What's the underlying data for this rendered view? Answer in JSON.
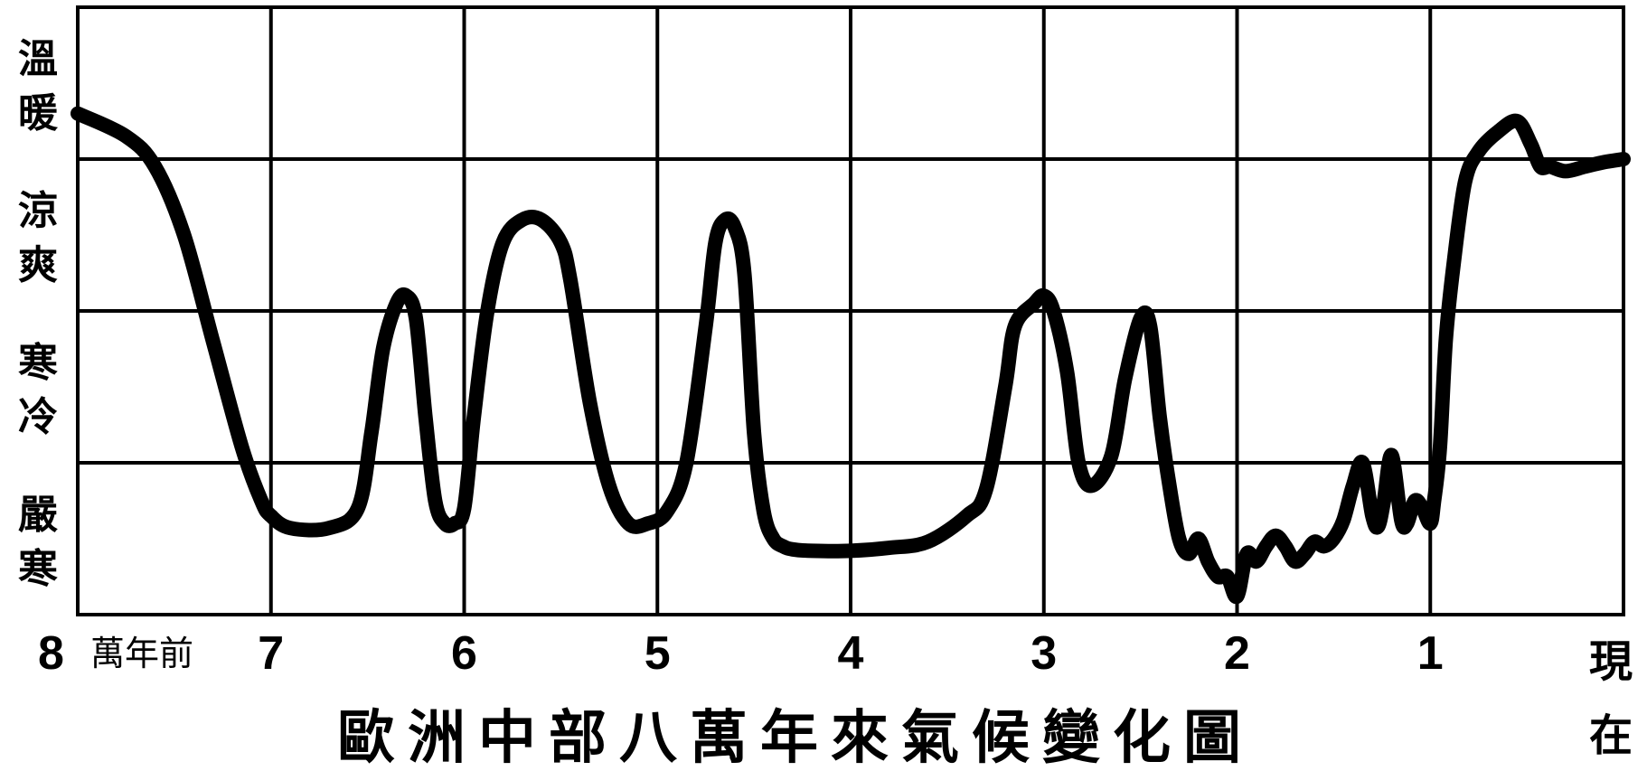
{
  "chart_data": {
    "type": "line",
    "title": "歐洲中部八萬年來氣候變化圖",
    "x_unit_label": "萬年前",
    "x_ticks": [
      "8",
      "7",
      "6",
      "5",
      "4",
      "3",
      "2",
      "1"
    ],
    "x_end_label": [
      "現",
      "在"
    ],
    "xlim": [
      8,
      0
    ],
    "ylim": [
      0,
      4
    ],
    "y_bands": [
      {
        "label": [
          "溫",
          "暖"
        ],
        "from": 3,
        "to": 4
      },
      {
        "label": [
          "涼",
          "爽"
        ],
        "from": 2,
        "to": 3
      },
      {
        "label": [
          "寒",
          "冷"
        ],
        "from": 1,
        "to": 2
      },
      {
        "label": [
          "嚴",
          "寒"
        ],
        "from": 0,
        "to": 1
      }
    ],
    "grid": true,
    "series": [
      {
        "color": "#000000",
        "x": [
          8.0,
          7.75,
          7.6,
          7.45,
          7.3,
          7.15,
          7.05,
          7.0,
          6.9,
          6.7,
          6.55,
          6.48,
          6.42,
          6.35,
          6.3,
          6.25,
          6.2,
          6.15,
          6.1,
          6.05,
          6.0,
          5.95,
          5.88,
          5.8,
          5.7,
          5.6,
          5.5,
          5.45,
          5.35,
          5.25,
          5.15,
          5.05,
          4.95,
          4.85,
          4.75,
          4.7,
          4.65,
          4.6,
          4.55,
          4.5,
          4.45,
          4.4,
          4.35,
          4.3,
          4.2,
          4.0,
          3.8,
          3.6,
          3.4,
          3.3,
          3.2,
          3.15,
          3.05,
          3.0,
          2.95,
          2.88,
          2.82,
          2.75,
          2.65,
          2.58,
          2.5,
          2.45,
          2.4,
          2.35,
          2.3,
          2.25,
          2.2,
          2.15,
          2.1,
          2.05,
          2.0,
          1.95,
          1.9,
          1.85,
          1.8,
          1.75,
          1.7,
          1.65,
          1.6,
          1.55,
          1.5,
          1.45,
          1.4,
          1.35,
          1.3,
          1.27,
          1.24,
          1.2,
          1.15,
          1.12,
          1.08,
          1.04,
          1.0,
          0.98,
          0.95,
          0.92,
          0.88,
          0.82,
          0.75,
          0.65,
          0.55,
          0.48,
          0.43,
          0.38,
          0.3,
          0.2,
          0.1,
          0.0
        ],
        "y": [
          3.3,
          3.15,
          2.95,
          2.5,
          1.8,
          1.1,
          0.75,
          0.65,
          0.57,
          0.57,
          0.7,
          1.2,
          1.75,
          2.05,
          2.1,
          1.95,
          1.3,
          0.75,
          0.6,
          0.6,
          0.7,
          1.3,
          2.0,
          2.45,
          2.6,
          2.6,
          2.45,
          2.2,
          1.4,
          0.85,
          0.6,
          0.6,
          0.68,
          1.0,
          1.9,
          2.45,
          2.6,
          2.55,
          2.25,
          1.2,
          0.68,
          0.5,
          0.45,
          0.43,
          0.42,
          0.42,
          0.44,
          0.48,
          0.65,
          0.82,
          1.5,
          1.9,
          2.05,
          2.1,
          2.0,
          1.6,
          1.0,
          0.85,
          1.05,
          1.55,
          1.95,
          1.9,
          1.3,
          0.85,
          0.5,
          0.4,
          0.5,
          0.35,
          0.25,
          0.25,
          0.12,
          0.4,
          0.35,
          0.45,
          0.52,
          0.45,
          0.35,
          0.4,
          0.48,
          0.45,
          0.5,
          0.62,
          0.85,
          1.0,
          0.65,
          0.58,
          0.75,
          1.05,
          0.62,
          0.6,
          0.75,
          0.7,
          0.6,
          0.75,
          1.1,
          1.8,
          2.3,
          2.85,
          3.05,
          3.18,
          3.25,
          3.1,
          2.95,
          2.95,
          2.92,
          2.95,
          2.98,
          3.0
        ]
      }
    ]
  }
}
